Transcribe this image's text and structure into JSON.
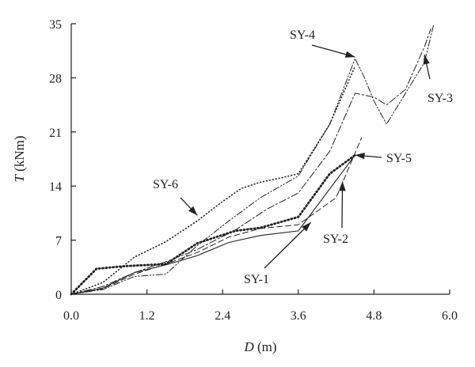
{
  "chart_data": {
    "type": "line",
    "xlabel": {
      "symbol": "D",
      "unit": " (m)"
    },
    "ylabel": {
      "symbol": "T",
      "unit": " (kNm)"
    },
    "xlim": [
      0,
      6
    ],
    "ylim": [
      0,
      35
    ],
    "x_ticks": [
      "0.0",
      "1.2",
      "2.4",
      "3.6",
      "4.8",
      "6.0"
    ],
    "y_ticks": [
      "0",
      "7",
      "14",
      "21",
      "28",
      "35"
    ],
    "grid": false,
    "legend": "none",
    "series": [
      {
        "name": "SY-1",
        "style": "solid",
        "x": [
          0,
          0.5,
          1.0,
          1.5,
          2.0,
          2.5,
          3.0,
          3.6,
          4.5
        ],
        "y": [
          0,
          0.8,
          2.8,
          3.8,
          5.0,
          6.7,
          7.6,
          8.2,
          18.0
        ]
      },
      {
        "name": "SY-2",
        "style": "dashed",
        "x": [
          0,
          0.5,
          1.0,
          1.5,
          2.0,
          2.5,
          3.0,
          3.6,
          4.2,
          4.6
        ],
        "y": [
          0,
          0.7,
          2.6,
          3.9,
          5.4,
          7.4,
          8.5,
          9.0,
          12.5,
          20.2
        ]
      },
      {
        "name": "SY-3",
        "style": "dashdot",
        "x": [
          0,
          0.5,
          1.0,
          1.5,
          2.0,
          2.6,
          3.1,
          3.6,
          4.1,
          4.5,
          4.8,
          5.0,
          5.3,
          5.6,
          5.7
        ],
        "y": [
          0,
          1.0,
          2.8,
          4.2,
          5.8,
          8.3,
          11.0,
          13.1,
          18.5,
          26.0,
          25.5,
          24.5,
          26.5,
          32.0,
          34.3
        ]
      },
      {
        "name": "SY-4",
        "style": "dashdotdot",
        "x": [
          0,
          0.5,
          1.0,
          1.5,
          2.0,
          2.5,
          3.0,
          3.6,
          4.1,
          4.5,
          4.65,
          4.8,
          5.0,
          5.3,
          5.6,
          5.75
        ],
        "y": [
          0,
          0.6,
          2.3,
          2.6,
          6.3,
          9.5,
          12.5,
          15.3,
          22.0,
          30.5,
          28.0,
          25.0,
          22.0,
          26.0,
          30.0,
          35.0
        ]
      },
      {
        "name": "SY-5",
        "style": "dotted-bold",
        "x": [
          0,
          0.4,
          0.8,
          1.0,
          1.5,
          2.0,
          2.6,
          3.0,
          3.6,
          4.1,
          4.5
        ],
        "y": [
          0,
          3.3,
          3.6,
          3.7,
          3.9,
          6.6,
          8.2,
          8.6,
          10.0,
          15.6,
          18.0
        ]
      },
      {
        "name": "SY-6",
        "style": "dotted",
        "x": [
          0,
          0.5,
          1.0,
          1.5,
          2.0,
          2.4,
          2.7,
          3.0,
          3.3,
          3.6,
          4.1,
          4.5
        ],
        "y": [
          0,
          1.5,
          4.8,
          6.8,
          9.5,
          12.0,
          13.7,
          14.5,
          15.0,
          15.6,
          22.0,
          29.5
        ]
      }
    ],
    "annotations": [
      {
        "text": "SY-4",
        "points_to": [
          4.5,
          30.7
        ]
      },
      {
        "text": "SY-3",
        "points_to": [
          5.6,
          31.0
        ]
      },
      {
        "text": "SY-5",
        "points_to": [
          4.5,
          18.0
        ]
      },
      {
        "text": "SY-6",
        "points_to": [
          2.0,
          10.2
        ]
      },
      {
        "text": "SY-2",
        "points_to": [
          4.3,
          14.6
        ]
      },
      {
        "text": "SY-1",
        "points_to": [
          3.8,
          9.3
        ]
      }
    ]
  }
}
